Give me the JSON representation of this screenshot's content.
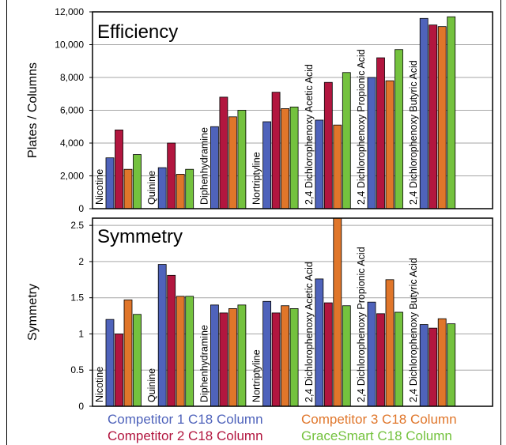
{
  "colors": {
    "competitor1": "#4f63bb",
    "competitor2": "#b2163f",
    "competitor3": "#e0762a",
    "gracesmart": "#74c23e"
  },
  "legend": [
    {
      "key": "competitor1",
      "label": "Competitor 1 C18 Column"
    },
    {
      "key": "competitor2",
      "label": "Competitor 2 C18 Column"
    },
    {
      "key": "competitor3",
      "label": "Competitor 3 C18 Column"
    },
    {
      "key": "gracesmart",
      "label": "GraceSmart C18 Column"
    }
  ],
  "chart_data": [
    {
      "type": "bar",
      "title": "Efficiency",
      "ylabel": "Plates / Columns",
      "xlabel": "",
      "ylim": [
        0,
        12000
      ],
      "yticks": [
        "0",
        "2,000",
        "4,000",
        "6,000",
        "8,000",
        "10,000",
        "12,000"
      ],
      "ytick_values": [
        0,
        2000,
        4000,
        6000,
        8000,
        10000,
        12000
      ],
      "grid": true,
      "legend_placement": "bottom",
      "categories": [
        "Nicotine",
        "Quinine",
        "Diphenhydramine",
        "Nortriptyline",
        "2,4 Dichlorophenoxy Acetic Acid",
        "2,4 Dichlorophenoxy Propionic Acid",
        "2,4 Dichlorophenoxy Butyric Acid"
      ],
      "series": [
        {
          "name": "Competitor 1 C18 Column",
          "key": "competitor1",
          "values": [
            3100,
            2500,
            5000,
            5300,
            5400,
            8000,
            11600
          ]
        },
        {
          "name": "Competitor 2 C18 Column",
          "key": "competitor2",
          "values": [
            4800,
            4000,
            6800,
            7100,
            7700,
            9200,
            11200
          ]
        },
        {
          "name": "Competitor 3 C18 Column",
          "key": "competitor3",
          "values": [
            2400,
            2100,
            5600,
            6100,
            5100,
            7800,
            11100
          ]
        },
        {
          "name": "GraceSmart C18 Column",
          "key": "gracesmart",
          "values": [
            3300,
            2400,
            6000,
            6200,
            8300,
            9700,
            11700
          ]
        }
      ]
    },
    {
      "type": "bar",
      "title": "Symmetry",
      "ylabel": "Symmetry",
      "xlabel": "",
      "ylim": [
        0,
        2.6
      ],
      "yticks": [
        "0",
        "0.5",
        "1",
        "1.5",
        "2",
        "2.5"
      ],
      "ytick_values": [
        0,
        0.5,
        1,
        1.5,
        2,
        2.5
      ],
      "grid": true,
      "legend_placement": "bottom",
      "categories": [
        "Nicotine",
        "Quinine",
        "Diphenhydramine",
        "Nortriptyline",
        "2,4 Dichlorophenoxy Acetic Acid",
        "2,4 Dichlorophenoxy Propionic Acid",
        "2,4 Dichlorophenoxy Butyric Acid"
      ],
      "series": [
        {
          "name": "Competitor 1 C18 Column",
          "key": "competitor1",
          "values": [
            1.2,
            1.96,
            1.4,
            1.45,
            1.76,
            1.44,
            1.13
          ]
        },
        {
          "name": "Competitor 2 C18 Column",
          "key": "competitor2",
          "values": [
            1.0,
            1.81,
            1.29,
            1.29,
            1.43,
            1.28,
            1.08
          ]
        },
        {
          "name": "Competitor 3 C18 Column",
          "key": "competitor3",
          "values": [
            1.47,
            1.52,
            1.35,
            1.39,
            2.6,
            1.75,
            1.21
          ]
        },
        {
          "name": "GraceSmart C18 Column",
          "key": "gracesmart",
          "values": [
            1.27,
            1.52,
            1.4,
            1.35,
            1.39,
            1.3,
            1.14
          ]
        }
      ]
    }
  ]
}
